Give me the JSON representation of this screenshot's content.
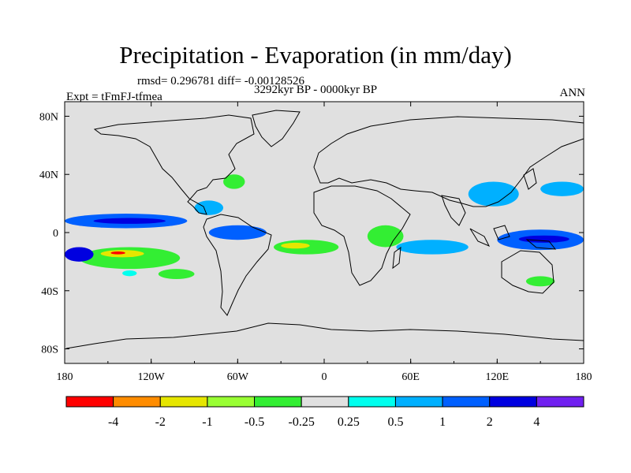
{
  "chart_data": {
    "type": "heatmap",
    "title": "Precipitation - Evaporation (in mm/day)",
    "stats_line": "rmsd= 0.296781 diff= -0.00128526",
    "period": "3292kyr BP - 0000kyr BP",
    "experiment": "Expt = tFmFJ-tfmea",
    "season": "ANN",
    "x_tick_labels": [
      "180",
      "120W",
      "60W",
      "0",
      "60E",
      "120E",
      "180"
    ],
    "x_tick_values": [
      -180,
      -120,
      -60,
      0,
      60,
      120,
      180
    ],
    "y_tick_labels": [
      "80N",
      "40N",
      "0",
      "40S",
      "80S"
    ],
    "y_tick_values": [
      80,
      40,
      0,
      -40,
      -80
    ],
    "xlim": [
      -180,
      180
    ],
    "ylim": [
      -90,
      90
    ],
    "colorbar": {
      "labels": [
        "-4",
        "-2",
        "-1",
        "-0.5",
        "-0.25",
        "0.25",
        "0.5",
        "1",
        "2",
        "4"
      ],
      "colors": [
        "#ff0000",
        "#ff8c00",
        "#e6e600",
        "#99ff33",
        "#33ee33",
        "#e0e0e0",
        "#00ffee",
        "#00b0ff",
        "#0060ff",
        "#0000e0",
        "#7020f0"
      ]
    },
    "anomaly_regions": [
      {
        "name": "north-pacific-itcz-band",
        "lon": [
          -180,
          -95
        ],
        "lat": [
          3,
          13
        ],
        "class": 8
      },
      {
        "name": "north-pacific-itcz-core",
        "lon": [
          -160,
          -110
        ],
        "lat": [
          6,
          10
        ],
        "class": 9
      },
      {
        "name": "south-pacific-dry-band",
        "lon": [
          -170,
          -100
        ],
        "lat": [
          -25,
          -10
        ],
        "class": 4
      },
      {
        "name": "south-pacific-dry-core",
        "lon": [
          -155,
          -125
        ],
        "lat": [
          -17,
          -12
        ],
        "class": 2
      },
      {
        "name": "south-pacific-dry-peak",
        "lon": [
          -148,
          -138
        ],
        "lat": [
          -15,
          -13
        ],
        "class": 0
      },
      {
        "name": "west-pacific-wet",
        "lon": [
          -180,
          -160
        ],
        "lat": [
          -20,
          -10
        ],
        "class": 9
      },
      {
        "name": "southeast-pacific-dry",
        "lon": [
          -115,
          -90
        ],
        "lat": [
          -32,
          -25
        ],
        "class": 4
      },
      {
        "name": "south-pacific-wet-patch",
        "lon": [
          -140,
          -130
        ],
        "lat": [
          -30,
          -26
        ],
        "class": 6
      },
      {
        "name": "central-america-wet",
        "lon": [
          -90,
          -70
        ],
        "lat": [
          12,
          22
        ],
        "class": 7
      },
      {
        "name": "amazon-wet",
        "lon": [
          -80,
          -40
        ],
        "lat": [
          -5,
          5
        ],
        "class": 8
      },
      {
        "name": "south-atlantic-dry",
        "lon": [
          -35,
          10
        ],
        "lat": [
          -15,
          -5
        ],
        "class": 4
      },
      {
        "name": "south-atlantic-dry-core",
        "lon": [
          -30,
          -10
        ],
        "lat": [
          -11,
          -7
        ],
        "class": 2
      },
      {
        "name": "africa-dry",
        "lon": [
          30,
          55
        ],
        "lat": [
          -10,
          5
        ],
        "class": 4
      },
      {
        "name": "indian-ocean-wet",
        "lon": [
          50,
          100
        ],
        "lat": [
          -15,
          -5
        ],
        "class": 7
      },
      {
        "name": "maritime-continent-wet",
        "lon": [
          120,
          180
        ],
        "lat": [
          -12,
          2
        ],
        "class": 8
      },
      {
        "name": "maritime-continent-core",
        "lon": [
          135,
          170
        ],
        "lat": [
          -7,
          -2
        ],
        "class": 9
      },
      {
        "name": "east-asia-wet",
        "lon": [
          100,
          135
        ],
        "lat": [
          18,
          35
        ],
        "class": 7
      },
      {
        "name": "north-pacific-east-wet",
        "lon": [
          150,
          180
        ],
        "lat": [
          25,
          35
        ],
        "class": 7
      },
      {
        "name": "north-west-atlantic-dry",
        "lon": [
          -70,
          -55
        ],
        "lat": [
          30,
          40
        ],
        "class": 4
      },
      {
        "name": "south-indian-dry",
        "lon": [
          140,
          160
        ],
        "lat": [
          -37,
          -30
        ],
        "class": 4
      }
    ]
  }
}
